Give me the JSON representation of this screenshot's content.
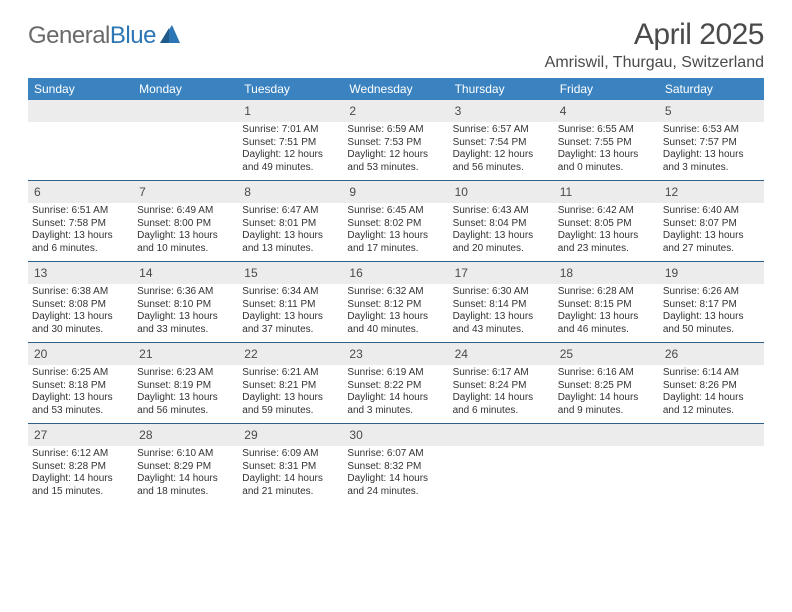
{
  "brand": {
    "part1": "General",
    "part2": "Blue"
  },
  "title": "April 2025",
  "location": "Amriswil, Thurgau, Switzerland",
  "colors": {
    "header_bg": "#3b83c0",
    "header_text": "#ffffff",
    "daynum_bg": "#ececec",
    "week_divider": "#2c5f8a",
    "logo_gray": "#6a6a6a",
    "logo_blue": "#2d76b5"
  },
  "dayNames": [
    "Sunday",
    "Monday",
    "Tuesday",
    "Wednesday",
    "Thursday",
    "Friday",
    "Saturday"
  ],
  "weeks": [
    [
      {
        "n": "",
        "sr": "",
        "ss": "",
        "dl": ""
      },
      {
        "n": "",
        "sr": "",
        "ss": "",
        "dl": ""
      },
      {
        "n": "1",
        "sr": "Sunrise: 7:01 AM",
        "ss": "Sunset: 7:51 PM",
        "dl": "Daylight: 12 hours and 49 minutes."
      },
      {
        "n": "2",
        "sr": "Sunrise: 6:59 AM",
        "ss": "Sunset: 7:53 PM",
        "dl": "Daylight: 12 hours and 53 minutes."
      },
      {
        "n": "3",
        "sr": "Sunrise: 6:57 AM",
        "ss": "Sunset: 7:54 PM",
        "dl": "Daylight: 12 hours and 56 minutes."
      },
      {
        "n": "4",
        "sr": "Sunrise: 6:55 AM",
        "ss": "Sunset: 7:55 PM",
        "dl": "Daylight: 13 hours and 0 minutes."
      },
      {
        "n": "5",
        "sr": "Sunrise: 6:53 AM",
        "ss": "Sunset: 7:57 PM",
        "dl": "Daylight: 13 hours and 3 minutes."
      }
    ],
    [
      {
        "n": "6",
        "sr": "Sunrise: 6:51 AM",
        "ss": "Sunset: 7:58 PM",
        "dl": "Daylight: 13 hours and 6 minutes."
      },
      {
        "n": "7",
        "sr": "Sunrise: 6:49 AM",
        "ss": "Sunset: 8:00 PM",
        "dl": "Daylight: 13 hours and 10 minutes."
      },
      {
        "n": "8",
        "sr": "Sunrise: 6:47 AM",
        "ss": "Sunset: 8:01 PM",
        "dl": "Daylight: 13 hours and 13 minutes."
      },
      {
        "n": "9",
        "sr": "Sunrise: 6:45 AM",
        "ss": "Sunset: 8:02 PM",
        "dl": "Daylight: 13 hours and 17 minutes."
      },
      {
        "n": "10",
        "sr": "Sunrise: 6:43 AM",
        "ss": "Sunset: 8:04 PM",
        "dl": "Daylight: 13 hours and 20 minutes."
      },
      {
        "n": "11",
        "sr": "Sunrise: 6:42 AM",
        "ss": "Sunset: 8:05 PM",
        "dl": "Daylight: 13 hours and 23 minutes."
      },
      {
        "n": "12",
        "sr": "Sunrise: 6:40 AM",
        "ss": "Sunset: 8:07 PM",
        "dl": "Daylight: 13 hours and 27 minutes."
      }
    ],
    [
      {
        "n": "13",
        "sr": "Sunrise: 6:38 AM",
        "ss": "Sunset: 8:08 PM",
        "dl": "Daylight: 13 hours and 30 minutes."
      },
      {
        "n": "14",
        "sr": "Sunrise: 6:36 AM",
        "ss": "Sunset: 8:10 PM",
        "dl": "Daylight: 13 hours and 33 minutes."
      },
      {
        "n": "15",
        "sr": "Sunrise: 6:34 AM",
        "ss": "Sunset: 8:11 PM",
        "dl": "Daylight: 13 hours and 37 minutes."
      },
      {
        "n": "16",
        "sr": "Sunrise: 6:32 AM",
        "ss": "Sunset: 8:12 PM",
        "dl": "Daylight: 13 hours and 40 minutes."
      },
      {
        "n": "17",
        "sr": "Sunrise: 6:30 AM",
        "ss": "Sunset: 8:14 PM",
        "dl": "Daylight: 13 hours and 43 minutes."
      },
      {
        "n": "18",
        "sr": "Sunrise: 6:28 AM",
        "ss": "Sunset: 8:15 PM",
        "dl": "Daylight: 13 hours and 46 minutes."
      },
      {
        "n": "19",
        "sr": "Sunrise: 6:26 AM",
        "ss": "Sunset: 8:17 PM",
        "dl": "Daylight: 13 hours and 50 minutes."
      }
    ],
    [
      {
        "n": "20",
        "sr": "Sunrise: 6:25 AM",
        "ss": "Sunset: 8:18 PM",
        "dl": "Daylight: 13 hours and 53 minutes."
      },
      {
        "n": "21",
        "sr": "Sunrise: 6:23 AM",
        "ss": "Sunset: 8:19 PM",
        "dl": "Daylight: 13 hours and 56 minutes."
      },
      {
        "n": "22",
        "sr": "Sunrise: 6:21 AM",
        "ss": "Sunset: 8:21 PM",
        "dl": "Daylight: 13 hours and 59 minutes."
      },
      {
        "n": "23",
        "sr": "Sunrise: 6:19 AM",
        "ss": "Sunset: 8:22 PM",
        "dl": "Daylight: 14 hours and 3 minutes."
      },
      {
        "n": "24",
        "sr": "Sunrise: 6:17 AM",
        "ss": "Sunset: 8:24 PM",
        "dl": "Daylight: 14 hours and 6 minutes."
      },
      {
        "n": "25",
        "sr": "Sunrise: 6:16 AM",
        "ss": "Sunset: 8:25 PM",
        "dl": "Daylight: 14 hours and 9 minutes."
      },
      {
        "n": "26",
        "sr": "Sunrise: 6:14 AM",
        "ss": "Sunset: 8:26 PM",
        "dl": "Daylight: 14 hours and 12 minutes."
      }
    ],
    [
      {
        "n": "27",
        "sr": "Sunrise: 6:12 AM",
        "ss": "Sunset: 8:28 PM",
        "dl": "Daylight: 14 hours and 15 minutes."
      },
      {
        "n": "28",
        "sr": "Sunrise: 6:10 AM",
        "ss": "Sunset: 8:29 PM",
        "dl": "Daylight: 14 hours and 18 minutes."
      },
      {
        "n": "29",
        "sr": "Sunrise: 6:09 AM",
        "ss": "Sunset: 8:31 PM",
        "dl": "Daylight: 14 hours and 21 minutes."
      },
      {
        "n": "30",
        "sr": "Sunrise: 6:07 AM",
        "ss": "Sunset: 8:32 PM",
        "dl": "Daylight: 14 hours and 24 minutes."
      },
      {
        "n": "",
        "sr": "",
        "ss": "",
        "dl": ""
      },
      {
        "n": "",
        "sr": "",
        "ss": "",
        "dl": ""
      },
      {
        "n": "",
        "sr": "",
        "ss": "",
        "dl": ""
      }
    ]
  ]
}
